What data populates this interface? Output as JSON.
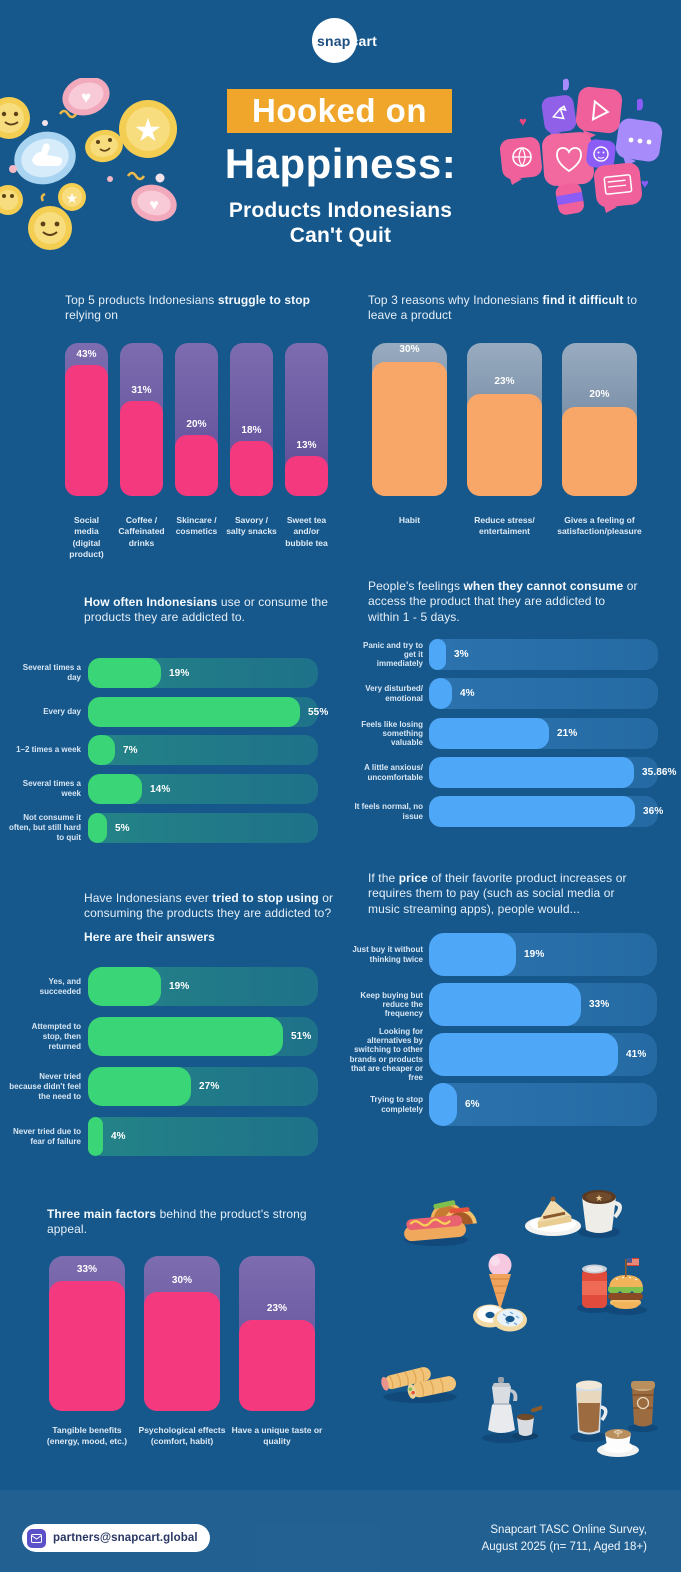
{
  "page": {
    "background": "#16588C",
    "footer_band": "rgba(255,255,255,0.05)"
  },
  "header": {
    "logo_snap": "snap",
    "logo_cart": "cart",
    "badge_title": "Hooked on",
    "badge_color": "#F0A62A",
    "title": "Happiness:",
    "subtitle": "Products Indonesians\nCan't Quit"
  },
  "decorations": {
    "left": "coins-with-emoji-faces-illustration",
    "right": "social-media-speech-bubbles-illustration",
    "foods": [
      "taco-and-hotdog",
      "cake-and-coffee",
      "icecream-and-donuts",
      "soda-and-burger",
      "wraps",
      "moka-pot",
      "coffee-cups"
    ]
  },
  "headings": {
    "s1l": [
      {
        "t": "Top 5 products Indonesians "
      },
      {
        "t": "struggle to stop",
        "b": 1
      },
      {
        "t": "\nrelying on"
      }
    ],
    "s1r": [
      {
        "t": "Top 3 reasons why Indonesians "
      },
      {
        "t": "find it difficult",
        "b": 1
      },
      {
        "t": " to\nleave a product"
      }
    ],
    "s2l": [
      {
        "t": "How often Indonesians",
        "b": 1
      },
      {
        "t": " use or consume the\nproducts they are addicted to."
      }
    ],
    "s2r": [
      {
        "t": "People's feelings "
      },
      {
        "t": "when they cannot consume",
        "b": 1
      },
      {
        "t": " or\naccess the product that they are addicted to\nwithin 1 - 5 days."
      }
    ],
    "s3l": [
      {
        "t": "Have Indonesians ever "
      },
      {
        "t": "tried to stop using",
        "b": 1
      },
      {
        "t": " or\nconsuming the products they are addicted to?"
      }
    ],
    "s3l_sub": "Here are their answers",
    "s3r": [
      {
        "t": "If the "
      },
      {
        "t": "price",
        "b": 1
      },
      {
        "t": " of their favorite product increases or\nrequires them to pay (such as social media or\nmusic streaming apps), people would..."
      }
    ],
    "s4": [
      {
        "t": "Three main factors",
        "b": 1
      },
      {
        "t": " behind the product's strong\nappeal."
      }
    ]
  },
  "chart_data": [
    {
      "type": "bar",
      "orientation": "vertical",
      "title": "Top 5 products Indonesians struggle to stop relying on",
      "categories": [
        "Social\nmedia\n(digital\nproduct)",
        "Coffee /\nCaffeinated\ndrinks",
        "Skincare /\ncosmetics",
        "Savory /\nsalty snacks",
        "Sweet tea\nand/or\nbubble tea"
      ],
      "values": [
        43,
        31,
        20,
        18,
        13
      ],
      "value_labels": [
        "43%",
        "31%",
        "20%",
        "18%",
        "13%"
      ],
      "colors": {
        "fill": "#F4397E",
        "track_top": "#7E6CB0",
        "track_bottom": "#5D4C96"
      }
    },
    {
      "type": "bar",
      "orientation": "vertical",
      "title": "Top 3 reasons why Indonesians find it difficult to leave a product",
      "categories": [
        "Habit",
        "Reduce stress/\nentertaiment",
        "Gives a feeling of\nsatisfaction/pleasure"
      ],
      "values": [
        30,
        23,
        20
      ],
      "value_labels": [
        "30%",
        "23%",
        "20%"
      ],
      "colors": {
        "fill": "#F9A669",
        "track_top": "rgba(175,185,200,0.85)",
        "track_bottom": "rgba(110,126,148,0.8)"
      }
    },
    {
      "type": "bar",
      "orientation": "horizontal",
      "title": "How often Indonesians use or consume the products they are addicted to.",
      "categories": [
        "Several times a\nday",
        "Every day",
        "1–2 times a week",
        "Several times a\nweek",
        "Not consume it\noften, but still hard\nto quit"
      ],
      "values": [
        19,
        55,
        7,
        14,
        5
      ],
      "value_labels": [
        "19%",
        "55%",
        "7%",
        "14%",
        "5%"
      ],
      "colors": {
        "fill": "#3AD576",
        "track": "linear-gradient(90deg, rgba(62,215,125,0.34), rgba(62,215,125,0.20))"
      }
    },
    {
      "type": "bar",
      "orientation": "horizontal",
      "title": "People's feelings when they cannot consume or access the product that they are addicted to within 1 - 5 days.",
      "categories": [
        "Panic and try to\nget it\nimmediately",
        "Very disturbed/\nemotional",
        "Feels like losing\nsomething\nvaluable",
        "A little anxious/\nuncomfortable",
        "It feels normal, no\nissue"
      ],
      "values": [
        3,
        4,
        21,
        35.86,
        36
      ],
      "value_labels": [
        "3%",
        "4%",
        "21%",
        "35.86%",
        "36%"
      ],
      "colors": {
        "fill": "#4FA7F7",
        "track": "linear-gradient(90deg, rgba(95,178,255,0.30), rgba(95,178,255,0.20))"
      }
    },
    {
      "type": "bar",
      "orientation": "horizontal",
      "title": "Have Indonesians ever tried to stop using or consuming the products they are addicted to?",
      "categories": [
        "Yes, and\nsucceeded",
        "Attempted to\nstop, then\nreturned",
        "Never tried\nbecause didn't feel\nthe need to",
        "Never tried due to\nfear of failure"
      ],
      "values": [
        19,
        51,
        27,
        4
      ],
      "value_labels": [
        "19%",
        "51%",
        "27%",
        "4%"
      ],
      "colors": {
        "fill": "#3AD576",
        "track": "linear-gradient(90deg, rgba(62,215,125,0.34), rgba(62,215,125,0.20))"
      }
    },
    {
      "type": "bar",
      "orientation": "horizontal",
      "title": "If the price of their favorite product increases or requires them to pay, people would...",
      "categories": [
        "Just buy it without\nthinking twice",
        "Keep buying but\nreduce the\nfrequency",
        "Looking for\nalternatives by\nswitching to other\nbrands or products\nthat are cheaper or\nfree",
        "Trying to stop\ncompletely"
      ],
      "values": [
        19,
        33,
        41,
        6
      ],
      "value_labels": [
        "19%",
        "33%",
        "41%",
        "6%"
      ],
      "colors": {
        "fill": "#4FA7F7",
        "track": "linear-gradient(90deg, rgba(95,178,255,0.30), rgba(95,178,255,0.20))"
      }
    },
    {
      "type": "bar",
      "orientation": "vertical",
      "title": "Three main factors behind the product's strong appeal.",
      "categories": [
        "Tangible benefits\n(energy, mood, etc.)",
        "Psychological effects\n(comfort, habit)",
        "Have a unique taste or\nquality"
      ],
      "values": [
        33,
        30,
        23
      ],
      "value_labels": [
        "33%",
        "30%",
        "23%"
      ],
      "colors": {
        "fill": "#F4397E",
        "track_top": "#7E6CB0",
        "track_bottom": "#5D4C96"
      }
    }
  ],
  "footer": {
    "email": "partners@snapcart.global",
    "survey": "Snapcart TASC Online Survey,\nAugust 2025 (n= 711, Aged 18+)"
  }
}
